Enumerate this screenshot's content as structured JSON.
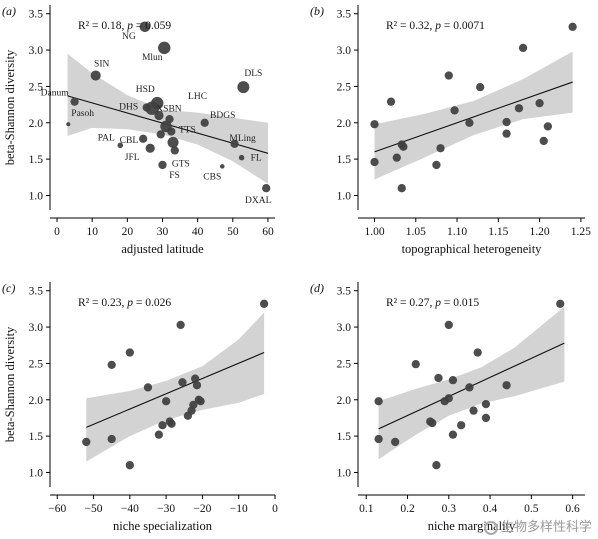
{
  "y_axis_label": "beta-Shannon diversity",
  "watermark": "生物多样性科学",
  "chart_data": [
    {
      "type": "scatter",
      "panel_label": "(a)",
      "stat_prefix": "R² = 0.18, ",
      "stat_p": "p",
      "stat_suffix": " = 0.059",
      "xlabel": "adjusted latitude",
      "ylabel": "beta-Shannon diversity",
      "xlim": [
        -2,
        62
      ],
      "ylim": [
        0.8,
        3.62
      ],
      "xticks": [
        0,
        10,
        20,
        30,
        40,
        50,
        60
      ],
      "xtick_labels": [
        "0",
        "10",
        "20",
        "30",
        "40",
        "50",
        "60"
      ],
      "yticks": [
        1.0,
        1.5,
        2.0,
        2.5,
        3.0,
        3.5
      ],
      "ytick_labels": [
        "1.0",
        "1.5",
        "2.0",
        "2.5",
        "3.0",
        "3.5"
      ],
      "fit": {
        "x": [
          3,
          60
        ],
        "y": [
          2.37,
          1.58
        ]
      },
      "band": {
        "x": [
          3,
          10,
          20,
          30,
          40,
          50,
          60
        ],
        "upper": [
          2.95,
          2.68,
          2.38,
          2.18,
          2.14,
          2.07,
          2.0
        ],
        "lower": [
          1.82,
          1.93,
          1.91,
          1.84,
          1.7,
          1.47,
          1.16
        ]
      },
      "points": [
        {
          "label": "NG",
          "x": 25,
          "y": 3.32,
          "size": 1.15
        },
        {
          "label": "Mlun",
          "x": 30.5,
          "y": 3.03,
          "size": 1.35
        },
        {
          "label": "SIN",
          "x": 11,
          "y": 2.65,
          "size": 1.1
        },
        {
          "label": "DLS",
          "x": 53,
          "y": 2.49,
          "size": 1.3
        },
        {
          "label": "Danum",
          "x": 5,
          "y": 2.29,
          "size": 0.9
        },
        {
          "label": "HSD",
          "x": 28.5,
          "y": 2.27,
          "size": 1.35
        },
        {
          "label": "",
          "x": 27,
          "y": 2.2,
          "size": 1.45
        },
        {
          "label": "DHS",
          "x": 25.5,
          "y": 2.21,
          "size": 0.9
        },
        {
          "label": "XSBN",
          "x": 29,
          "y": 2.1,
          "size": 1.0
        },
        {
          "label": "LHC",
          "x": 32,
          "y": 2.05,
          "size": 0.9
        },
        {
          "label": "BDGS",
          "x": 42,
          "y": 2.0,
          "size": 0.9
        },
        {
          "label": "Pasoh",
          "x": 3.2,
          "y": 1.98,
          "size": 0.45
        },
        {
          "label": "",
          "x": 31,
          "y": 1.95,
          "size": 1.25
        },
        {
          "label": "TTS",
          "x": 32.5,
          "y": 1.88,
          "size": 0.9
        },
        {
          "label": "",
          "x": 29.5,
          "y": 1.84,
          "size": 0.9
        },
        {
          "label": "CBL",
          "x": 24.5,
          "y": 1.78,
          "size": 0.9
        },
        {
          "label": "",
          "x": 33,
          "y": 1.73,
          "size": 1.2
        },
        {
          "label": "MLing",
          "x": 50.5,
          "y": 1.71,
          "size": 0.9
        },
        {
          "label": "PAL",
          "x": 18,
          "y": 1.69,
          "size": 0.6
        },
        {
          "label": "JFL",
          "x": 26.5,
          "y": 1.65,
          "size": 1.0
        },
        {
          "label": "GTS",
          "x": 33.5,
          "y": 1.62,
          "size": 0.9
        },
        {
          "label": "FL",
          "x": 52.5,
          "y": 1.52,
          "size": 0.6
        },
        {
          "label": "FS",
          "x": 30,
          "y": 1.42,
          "size": 0.9
        },
        {
          "label": "CBS",
          "x": 47,
          "y": 1.4,
          "size": 0.5
        },
        {
          "label": "DXAL",
          "x": 59.5,
          "y": 1.1,
          "size": 0.9
        }
      ]
    },
    {
      "type": "scatter",
      "panel_label": "(b)",
      "stat_prefix": "R² = 0.32, ",
      "stat_p": "p",
      "stat_suffix": " = 0.0071",
      "xlabel": "topographical heterogeneity",
      "ylabel": "",
      "xlim": [
        0.98,
        1.255
      ],
      "ylim": [
        0.8,
        3.62
      ],
      "xticks": [
        1.0,
        1.05,
        1.1,
        1.15,
        1.2,
        1.25
      ],
      "xtick_labels": [
        "1.00",
        "1.05",
        "1.10",
        "1.15",
        "1.20",
        "1.25"
      ],
      "yticks": [
        1.0,
        1.5,
        2.0,
        2.5,
        3.0,
        3.5
      ],
      "ytick_labels": [
        "1.0",
        "1.5",
        "2.0",
        "2.5",
        "3.0",
        "3.5"
      ],
      "fit": {
        "x": [
          1.0,
          1.24
        ],
        "y": [
          1.6,
          2.56
        ]
      },
      "band": {
        "x": [
          1.0,
          1.06,
          1.12,
          1.18,
          1.24
        ],
        "upper": [
          1.98,
          2.12,
          2.3,
          2.6,
          2.98
        ],
        "lower": [
          1.22,
          1.52,
          1.83,
          2.05,
          2.14
        ]
      },
      "points": [
        {
          "label": "",
          "x": 1.0,
          "y": 1.98,
          "size": 0.9
        },
        {
          "label": "",
          "x": 1.0,
          "y": 1.46,
          "size": 0.9
        },
        {
          "label": "",
          "x": 1.02,
          "y": 2.29,
          "size": 0.9
        },
        {
          "label": "",
          "x": 1.027,
          "y": 1.52,
          "size": 0.9
        },
        {
          "label": "",
          "x": 1.033,
          "y": 1.7,
          "size": 0.9
        },
        {
          "label": "",
          "x": 1.035,
          "y": 1.67,
          "size": 0.9
        },
        {
          "label": "",
          "x": 1.033,
          "y": 1.1,
          "size": 0.9
        },
        {
          "label": "",
          "x": 1.075,
          "y": 1.42,
          "size": 0.9
        },
        {
          "label": "",
          "x": 1.08,
          "y": 1.65,
          "size": 0.9
        },
        {
          "label": "",
          "x": 1.09,
          "y": 2.65,
          "size": 0.9
        },
        {
          "label": "",
          "x": 1.097,
          "y": 2.17,
          "size": 0.9
        },
        {
          "label": "",
          "x": 1.115,
          "y": 2.0,
          "size": 0.9
        },
        {
          "label": "",
          "x": 1.128,
          "y": 2.49,
          "size": 0.9
        },
        {
          "label": "",
          "x": 1.16,
          "y": 2.01,
          "size": 0.9
        },
        {
          "label": "",
          "x": 1.16,
          "y": 1.85,
          "size": 0.9
        },
        {
          "label": "",
          "x": 1.175,
          "y": 2.2,
          "size": 0.9
        },
        {
          "label": "",
          "x": 1.18,
          "y": 3.03,
          "size": 0.9
        },
        {
          "label": "",
          "x": 1.2,
          "y": 2.27,
          "size": 0.9
        },
        {
          "label": "",
          "x": 1.205,
          "y": 1.75,
          "size": 0.9
        },
        {
          "label": "",
          "x": 1.21,
          "y": 1.95,
          "size": 0.9
        },
        {
          "label": "",
          "x": 1.24,
          "y": 3.32,
          "size": 0.9
        }
      ]
    },
    {
      "type": "scatter",
      "panel_label": "(c)",
      "stat_prefix": "R² = 0.23, ",
      "stat_p": "p",
      "stat_suffix": " = 0.026",
      "xlabel": "niche specialization",
      "ylabel": "beta-Shannon diversity",
      "xlim": [
        -62,
        0
      ],
      "ylim": [
        0.8,
        3.62
      ],
      "xticks": [
        -60,
        -50,
        -40,
        -30,
        -20,
        -10,
        0
      ],
      "xtick_labels": [
        "−60",
        "−50",
        "−40",
        "−30",
        "−20",
        "−10",
        "0"
      ],
      "yticks": [
        1.0,
        1.5,
        2.0,
        2.5,
        3.0,
        3.5
      ],
      "ytick_labels": [
        "1.0",
        "1.5",
        "2.0",
        "2.5",
        "3.0",
        "3.5"
      ],
      "fit": {
        "x": [
          -52,
          -3
        ],
        "y": [
          1.62,
          2.65
        ]
      },
      "band": {
        "x": [
          -52,
          -40,
          -30,
          -20,
          -10,
          -3
        ],
        "upper": [
          2.02,
          2.12,
          2.26,
          2.46,
          2.83,
          3.2
        ],
        "lower": [
          1.15,
          1.5,
          1.72,
          1.86,
          1.96,
          2.08
        ]
      },
      "points": [
        {
          "label": "",
          "x": -52,
          "y": 1.42,
          "size": 0.9
        },
        {
          "label": "",
          "x": -45,
          "y": 2.48,
          "size": 0.9
        },
        {
          "label": "",
          "x": -45,
          "y": 1.46,
          "size": 0.9
        },
        {
          "label": "",
          "x": -40,
          "y": 2.65,
          "size": 0.9
        },
        {
          "label": "",
          "x": -40,
          "y": 1.1,
          "size": 0.9
        },
        {
          "label": "",
          "x": -35,
          "y": 2.17,
          "size": 0.9
        },
        {
          "label": "",
          "x": -32,
          "y": 1.52,
          "size": 0.9
        },
        {
          "label": "",
          "x": -31,
          "y": 1.65,
          "size": 0.9
        },
        {
          "label": "",
          "x": -30,
          "y": 1.98,
          "size": 0.9
        },
        {
          "label": "",
          "x": -29,
          "y": 1.7,
          "size": 0.9
        },
        {
          "label": "",
          "x": -28.5,
          "y": 1.67,
          "size": 0.9
        },
        {
          "label": "",
          "x": -26,
          "y": 3.03,
          "size": 0.9
        },
        {
          "label": "",
          "x": -25.5,
          "y": 2.24,
          "size": 0.9
        },
        {
          "label": "",
          "x": -24,
          "y": 1.78,
          "size": 0.9
        },
        {
          "label": "",
          "x": -23,
          "y": 1.85,
          "size": 0.9
        },
        {
          "label": "",
          "x": -22.5,
          "y": 1.93,
          "size": 0.9
        },
        {
          "label": "",
          "x": -22,
          "y": 2.29,
          "size": 0.9
        },
        {
          "label": "",
          "x": -21.5,
          "y": 2.2,
          "size": 0.9
        },
        {
          "label": "",
          "x": -21,
          "y": 2.0,
          "size": 0.9
        },
        {
          "label": "",
          "x": -20.5,
          "y": 1.98,
          "size": 0.9
        },
        {
          "label": "",
          "x": -3,
          "y": 3.32,
          "size": 0.9
        }
      ]
    },
    {
      "type": "scatter",
      "panel_label": "(d)",
      "stat_prefix": "R² = 0.27, ",
      "stat_p": "p",
      "stat_suffix": " = 0.015",
      "xlabel": "niche marginality",
      "ylabel": "",
      "xlim": [
        0.08,
        0.63
      ],
      "ylim": [
        0.8,
        3.62
      ],
      "xticks": [
        0.1,
        0.2,
        0.3,
        0.4,
        0.5,
        0.6
      ],
      "xtick_labels": [
        "0.1",
        "0.2",
        "0.3",
        "0.4",
        "0.5",
        "0.6"
      ],
      "yticks": [
        1.0,
        1.5,
        2.0,
        2.5,
        3.0,
        3.5
      ],
      "ytick_labels": [
        "1.0",
        "1.5",
        "2.0",
        "2.5",
        "3.0",
        "3.5"
      ],
      "fit": {
        "x": [
          0.13,
          0.58
        ],
        "y": [
          1.6,
          2.78
        ]
      },
      "band": {
        "x": [
          0.13,
          0.22,
          0.3,
          0.38,
          0.46,
          0.58
        ],
        "upper": [
          1.98,
          2.15,
          2.28,
          2.45,
          2.72,
          3.28
        ],
        "lower": [
          1.18,
          1.52,
          1.78,
          1.95,
          2.05,
          2.25
        ]
      },
      "points": [
        {
          "label": "",
          "x": 0.13,
          "y": 1.98,
          "size": 0.9
        },
        {
          "label": "",
          "x": 0.13,
          "y": 1.46,
          "size": 0.9
        },
        {
          "label": "",
          "x": 0.17,
          "y": 1.42,
          "size": 0.9
        },
        {
          "label": "",
          "x": 0.22,
          "y": 2.49,
          "size": 0.9
        },
        {
          "label": "",
          "x": 0.255,
          "y": 1.7,
          "size": 0.9
        },
        {
          "label": "",
          "x": 0.26,
          "y": 1.68,
          "size": 0.9
        },
        {
          "label": "",
          "x": 0.275,
          "y": 2.3,
          "size": 0.9
        },
        {
          "label": "",
          "x": 0.27,
          "y": 1.1,
          "size": 0.9
        },
        {
          "label": "",
          "x": 0.29,
          "y": 1.98,
          "size": 0.9
        },
        {
          "label": "",
          "x": 0.3,
          "y": 3.03,
          "size": 0.9
        },
        {
          "label": "",
          "x": 0.31,
          "y": 2.27,
          "size": 0.9
        },
        {
          "label": "",
          "x": 0.3,
          "y": 2.02,
          "size": 0.9
        },
        {
          "label": "",
          "x": 0.31,
          "y": 1.52,
          "size": 0.9
        },
        {
          "label": "",
          "x": 0.33,
          "y": 1.65,
          "size": 0.9
        },
        {
          "label": "",
          "x": 0.35,
          "y": 2.17,
          "size": 0.9
        },
        {
          "label": "",
          "x": 0.36,
          "y": 1.85,
          "size": 0.9
        },
        {
          "label": "",
          "x": 0.37,
          "y": 2.65,
          "size": 0.9
        },
        {
          "label": "",
          "x": 0.39,
          "y": 1.94,
          "size": 0.9
        },
        {
          "label": "",
          "x": 0.39,
          "y": 1.75,
          "size": 0.9
        },
        {
          "label": "",
          "x": 0.44,
          "y": 2.2,
          "size": 0.9
        },
        {
          "label": "",
          "x": 0.57,
          "y": 3.32,
          "size": 0.9
        }
      ]
    }
  ]
}
